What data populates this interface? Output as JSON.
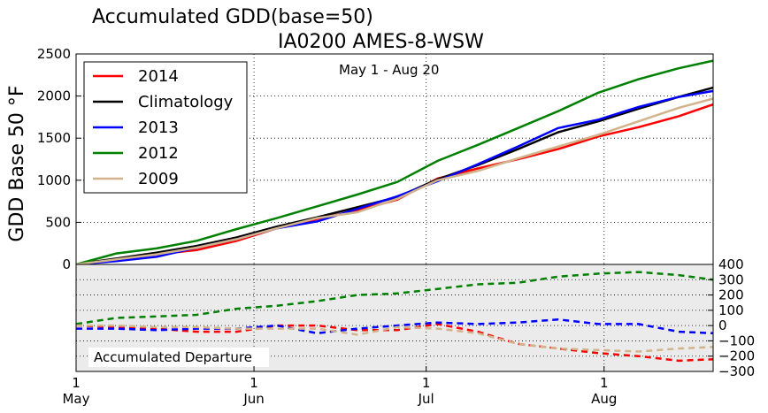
{
  "chart_data": [
    {
      "type": "line",
      "title": "Accumulated GDD(base=50)",
      "subtitle": "IA0200 AMES-8-WSW",
      "annotation": "May 1 - Aug 20",
      "ylabel": "GDD Base 50 °F",
      "xlabel": "",
      "xlim": [
        "May 1",
        "Aug 20"
      ],
      "ylim": [
        0,
        2500
      ],
      "yticks": [
        0,
        500,
        1000,
        1500,
        2000,
        2500
      ],
      "xticks": [
        {
          "day": 1,
          "top": "1",
          "bottom": "May"
        },
        {
          "day": 32,
          "top": "1",
          "bottom": "Jun"
        },
        {
          "day": 62,
          "top": "1",
          "bottom": "Jul"
        },
        {
          "day": 93,
          "top": "1",
          "bottom": "Aug"
        }
      ],
      "grid": true,
      "legend_position": "top-left",
      "x_day_of_season": [
        1,
        8,
        15,
        22,
        29,
        36,
        43,
        50,
        57,
        64,
        71,
        78,
        85,
        92,
        99,
        106,
        112
      ],
      "series": [
        {
          "name": "2014",
          "color": "#ff0000",
          "values": [
            0,
            60,
            120,
            170,
            280,
            430,
            540,
            640,
            770,
            1020,
            1140,
            1250,
            1370,
            1520,
            1630,
            1760,
            1900
          ]
        },
        {
          "name": "Climatology",
          "color": "#000000",
          "values": [
            0,
            70,
            140,
            220,
            320,
            450,
            560,
            680,
            800,
            1010,
            1180,
            1370,
            1570,
            1700,
            1850,
            1990,
            2100
          ]
        },
        {
          "name": "2013",
          "color": "#0000ff",
          "values": [
            0,
            40,
            90,
            200,
            300,
            430,
            510,
            660,
            810,
            990,
            1190,
            1400,
            1620,
            1720,
            1870,
            1990,
            2060
          ]
        },
        {
          "name": "2012",
          "color": "#008000",
          "values": [
            0,
            130,
            190,
            280,
            420,
            550,
            690,
            830,
            980,
            1230,
            1420,
            1620,
            1820,
            2040,
            2200,
            2330,
            2420
          ]
        },
        {
          "name": "2009",
          "color": "#d2b48c",
          "values": [
            0,
            60,
            120,
            200,
            300,
            430,
            550,
            620,
            780,
            1000,
            1110,
            1260,
            1400,
            1540,
            1700,
            1860,
            1970
          ]
        }
      ]
    },
    {
      "type": "line",
      "title": "",
      "annotation": "Accumulated Departure",
      "ylabel": "",
      "ylim": [
        -300,
        400
      ],
      "yticks": [
        -300,
        -200,
        -100,
        0,
        100,
        200,
        300,
        400
      ],
      "ytick_labels": [
        "−300",
        "−200",
        "−100",
        "0",
        "100",
        "200",
        "300",
        "400"
      ],
      "y_axis_side": "right",
      "line_style": "dashed",
      "grid": true,
      "background": "#ebebeb",
      "x_day_of_season": [
        1,
        8,
        15,
        22,
        29,
        36,
        43,
        50,
        57,
        64,
        71,
        78,
        85,
        92,
        99,
        106,
        112
      ],
      "series": [
        {
          "name": "2014",
          "color": "#ff0000",
          "values": [
            0,
            -10,
            -20,
            -40,
            -40,
            0,
            0,
            -30,
            -30,
            10,
            -40,
            -120,
            -150,
            -180,
            -200,
            -230,
            -220
          ]
        },
        {
          "name": "2013",
          "color": "#0000ff",
          "values": [
            -20,
            -20,
            -30,
            -20,
            -20,
            0,
            -50,
            -20,
            0,
            20,
            10,
            20,
            40,
            10,
            10,
            -40,
            -50
          ]
        },
        {
          "name": "2012",
          "color": "#008000",
          "values": [
            10,
            50,
            60,
            70,
            110,
            130,
            160,
            200,
            210,
            240,
            270,
            280,
            320,
            340,
            350,
            330,
            300
          ]
        },
        {
          "name": "2009",
          "color": "#d2b48c",
          "values": [
            0,
            0,
            -10,
            -10,
            -20,
            -20,
            -20,
            -60,
            -10,
            -20,
            -50,
            -120,
            -150,
            -160,
            -170,
            -150,
            -140
          ]
        }
      ]
    }
  ]
}
